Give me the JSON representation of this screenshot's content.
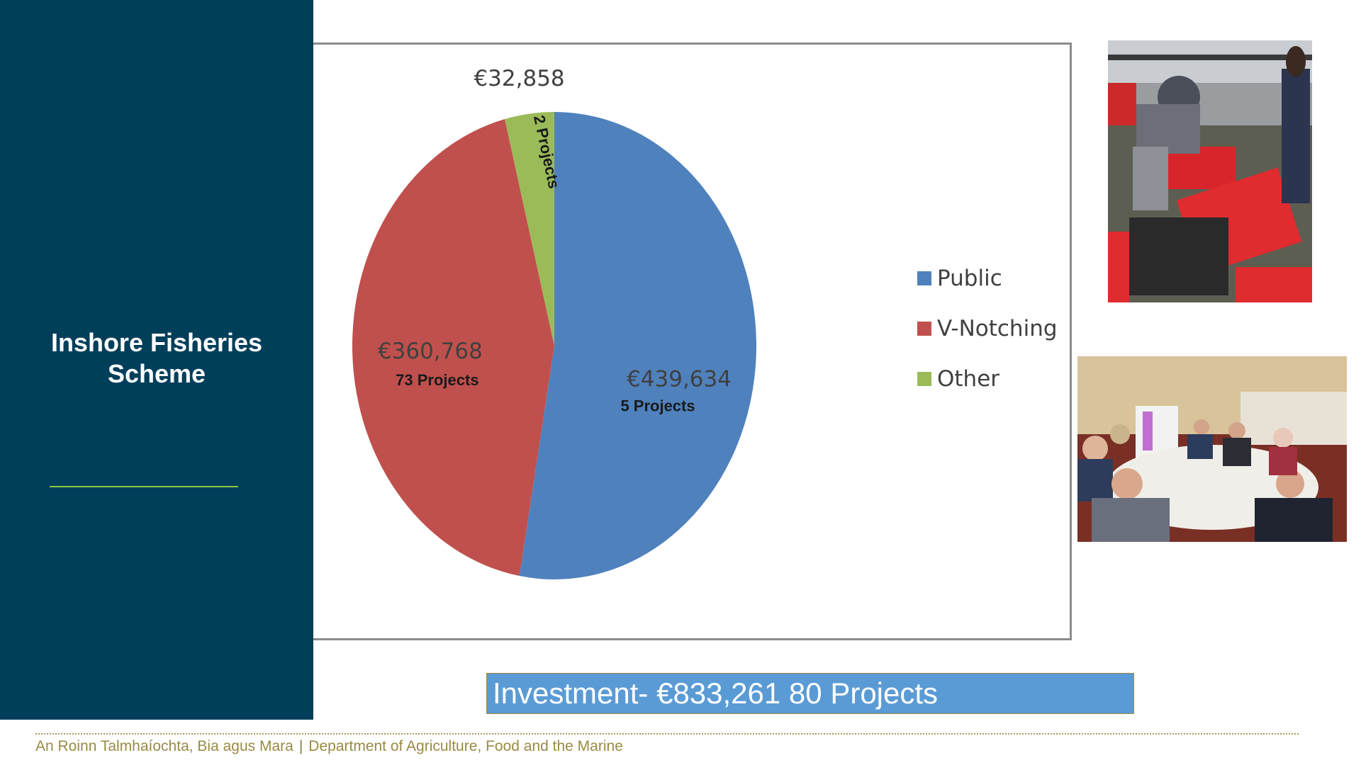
{
  "sidebar": {
    "title_line1": "Inshore Fisheries",
    "title_line2": "Scheme"
  },
  "chart_data": {
    "type": "pie",
    "title": "",
    "slices": [
      {
        "name": "Public",
        "value": 439634,
        "value_label": "€439,634",
        "projects_label": "5 Projects",
        "color": "#4f81bd"
      },
      {
        "name": "V-Notching",
        "value": 360768,
        "value_label": "€360,768",
        "projects_label": "73 Projects",
        "color": "#c0504d"
      },
      {
        "name": "Other",
        "value": 32858,
        "value_label": "€32,858",
        "projects_label": "2 Projects",
        "color": "#9bbb59"
      }
    ],
    "legend_position": "right"
  },
  "banner": {
    "text": "Investment- €833,261 80 Projects"
  },
  "footer": {
    "irish": "An Roinn Talmhaíochta, Bia agus Mara",
    "separator": "|",
    "english": "Department of Agriculture, Food and the Marine"
  },
  "photos": {
    "harbour": "photo-icon",
    "meeting": "photo-icon"
  }
}
